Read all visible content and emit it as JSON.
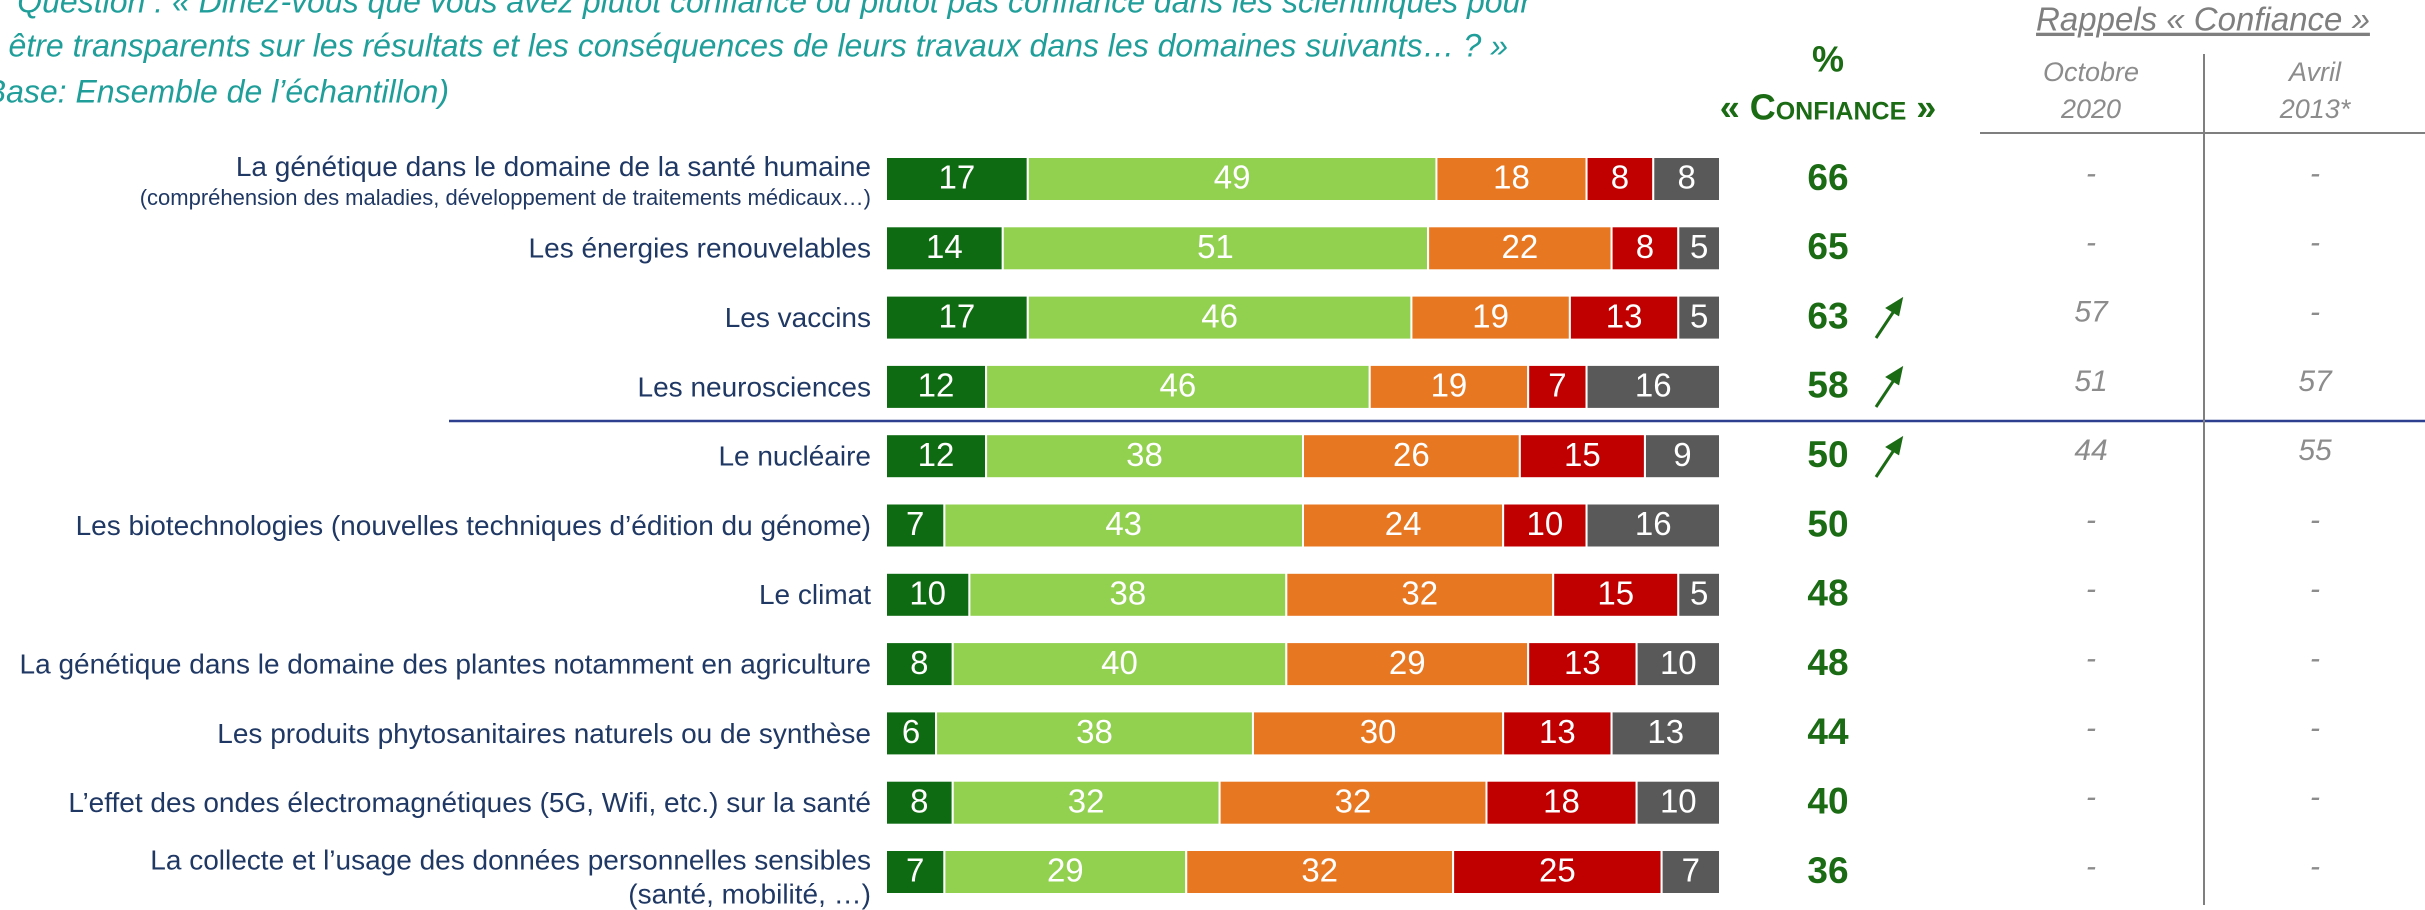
{
  "chart_data": {
    "type": "bar",
    "orientation": "horizontal",
    "stacked": true,
    "title_lines": [
      "Question : « Diriez-vous que vous avez plutôt confiance ou plutôt pas confiance dans les scientifiques pour",
      "être transparents sur les résultats et les conséquences de leurs travaux dans les domaines suivants… ? »",
      "(Base: Ensemble de l’échantillon)"
    ],
    "categories": [
      "La génétique dans le domaine de la santé humaine",
      "Les énergies renouvelables",
      "Les vaccins",
      "Les neurosciences",
      "Le nucléaire",
      "Les biotechnologies (nouvelles techniques d’édition du génome)",
      "Le climat",
      "La génétique dans le domaine des plantes notamment en agriculture",
      "Les produits phytosanitaires naturels ou de synthèse",
      "L’effet des ondes électromagnétiques (5G, Wifi, etc.) sur la santé",
      "La collecte et l’usage des données personnelles sensibles"
    ],
    "category_details": [
      "(compréhension des maladies, développement de traitements médicaux…)",
      null,
      null,
      null,
      null,
      null,
      null,
      null,
      null,
      null,
      "(santé, mobilité, …)"
    ],
    "xlim": [
      0,
      100
    ],
    "series": [
      {
        "color": "#0e6b12",
        "values": [
          17,
          14,
          17,
          12,
          12,
          7,
          10,
          8,
          6,
          8,
          7
        ]
      },
      {
        "color": "#92d050",
        "values": [
          49,
          51,
          46,
          46,
          38,
          43,
          38,
          40,
          38,
          32,
          29
        ]
      },
      {
        "color": "#e87722",
        "values": [
          18,
          22,
          19,
          19,
          26,
          24,
          32,
          29,
          30,
          32,
          32
        ]
      },
      {
        "color": "#c00000",
        "values": [
          8,
          8,
          13,
          7,
          15,
          10,
          15,
          13,
          13,
          18,
          25
        ]
      },
      {
        "color": "#595959",
        "values": [
          8,
          5,
          5,
          16,
          9,
          16,
          5,
          10,
          13,
          10,
          7
        ]
      }
    ],
    "confidence_header": [
      "%",
      "« Confiance »"
    ],
    "confidence": [
      66,
      65,
      63,
      58,
      50,
      50,
      48,
      48,
      44,
      40,
      36
    ],
    "recall_title": "Rappels « Confiance »",
    "recall_columns": [
      {
        "label": [
          "Octobre",
          "2020"
        ],
        "values": [
          "-",
          "-",
          57,
          51,
          44,
          "-",
          "-",
          "-",
          "-",
          "-",
          "-"
        ]
      },
      {
        "label": [
          "Avril",
          "2013*"
        ],
        "values": [
          "-",
          "-",
          "-",
          57,
          55,
          "-",
          "-",
          "-",
          "-",
          "-",
          "-"
        ]
      }
    ]
  }
}
